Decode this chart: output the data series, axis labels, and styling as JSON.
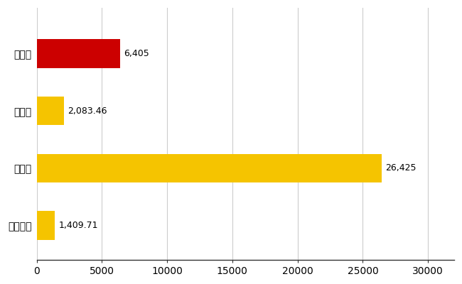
{
  "categories": [
    "伏見区",
    "県平均",
    "県最大",
    "全国平均"
  ],
  "values": [
    6405,
    2083.46,
    26425,
    1409.71
  ],
  "labels": [
    "6,405",
    "2,083.46",
    "26,425",
    "1,409.71"
  ],
  "bar_colors": [
    "#cc0000",
    "#f5c400",
    "#f5c400",
    "#f5c400"
  ],
  "background_color": "#ffffff",
  "xlim": [
    0,
    32000
  ],
  "xticks": [
    0,
    5000,
    10000,
    15000,
    20000,
    25000,
    30000
  ],
  "xtick_labels": [
    "0",
    "5000",
    "10000",
    "15000",
    "20000",
    "25000",
    "30000"
  ],
  "grid_color": "#cccccc",
  "label_color": "#000000",
  "tick_label_fontsize": 10,
  "bar_label_fontsize": 9,
  "bar_height": 0.5,
  "figsize": [
    6.5,
    4.0
  ],
  "dpi": 100
}
